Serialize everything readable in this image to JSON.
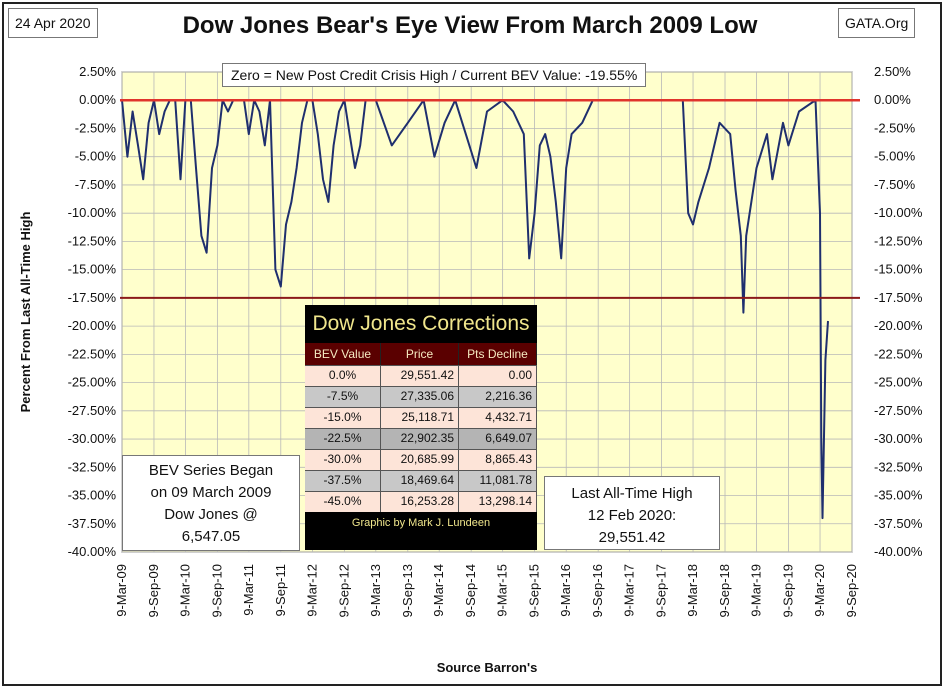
{
  "date": "24 Apr 2020",
  "source_site": "GATA.Org",
  "title": "Dow Jones Bear's Eye View From March 2009 Low",
  "subtitle": "Zero = New Post Credit Crisis High / Current BEV Value:  -19.55%",
  "colors": {
    "plot_bg": "#ffffcc",
    "line": "#1f2f6e",
    "zero_line": "#e0342c",
    "level_line": "#8b1a1a"
  },
  "corrections_table": {
    "title": "Dow Jones Corrections",
    "headers": [
      "BEV Value",
      "Price",
      "Pts Decline"
    ],
    "rows": [
      [
        "0.0%",
        "29,551.42",
        "0.00"
      ],
      [
        "-7.5%",
        "27,335.06",
        "2,216.36"
      ],
      [
        "-15.0%",
        "25,118.71",
        "4,432.71"
      ],
      [
        "-22.5%",
        "22,902.35",
        "6,649.07"
      ],
      [
        "-30.0%",
        "20,685.99",
        "8,865.43"
      ],
      [
        "-37.5%",
        "18,469.64",
        "11,081.78"
      ],
      [
        "-45.0%",
        "16,253.28",
        "13,298.14"
      ]
    ],
    "row_colors": [
      "#fde4d8",
      "#c8c8c8",
      "#fde4d8",
      "#b4b4b4",
      "#fde4d8",
      "#c8c8c8",
      "#fde4d8"
    ],
    "footer": "Graphic by Mark J. Lundeen"
  },
  "note_left": [
    "BEV Series Began",
    "on 09 March 2009",
    "Dow Jones @",
    "6,547.05"
  ],
  "note_right": [
    "Last All-Time High",
    "12 Feb 2020:",
    "29,551.42"
  ],
  "chart_data": {
    "type": "line",
    "title": "Dow Jones Bear's Eye View From March 2009 Low",
    "xlabel": "Source Barron's",
    "ylabel": "Percent From Last All-Time High",
    "ylim": [
      -40,
      2.5
    ],
    "y_ticks": [
      "2.50%",
      "0.00%",
      "-2.50%",
      "-5.00%",
      "-7.50%",
      "-10.00%",
      "-12.50%",
      "-15.00%",
      "-17.50%",
      "-20.00%",
      "-22.50%",
      "-25.00%",
      "-27.50%",
      "-30.00%",
      "-32.50%",
      "-35.00%",
      "-37.50%",
      "-40.00%"
    ],
    "x_ticks": [
      "9-Mar-09",
      "9-Sep-09",
      "9-Mar-10",
      "9-Sep-10",
      "9-Mar-11",
      "9-Sep-11",
      "9-Mar-12",
      "9-Sep-12",
      "9-Mar-13",
      "9-Sep-13",
      "9-Mar-14",
      "9-Sep-14",
      "9-Mar-15",
      "9-Sep-15",
      "9-Mar-16",
      "9-Sep-16",
      "9-Mar-17",
      "9-Sep-17",
      "9-Mar-18",
      "9-Sep-18",
      "9-Mar-19",
      "9-Sep-19",
      "9-Mar-20",
      "9-Sep-20"
    ],
    "reference_lines": [
      0,
      -17.5
    ],
    "grid": true,
    "series": [
      {
        "x": [
          "9-Mar-09",
          "9-Apr-09",
          "9-May-09",
          "9-Jun-09",
          "9-Jul-09",
          "9-Aug-09",
          "9-Sep-09",
          "9-Oct-09",
          "9-Nov-09",
          "9-Dec-09",
          "9-Jan-10",
          "9-Feb-10",
          "9-Mar-10",
          "9-Apr-10",
          "9-May-10",
          "9-Jun-10",
          "9-Jul-10",
          "9-Aug-10",
          "9-Sep-10",
          "9-Oct-10",
          "9-Nov-10",
          "9-Dec-10",
          "9-Jan-11",
          "9-Feb-11",
          "9-Mar-11",
          "9-Apr-11",
          "9-May-11",
          "9-Jun-11",
          "9-Jul-11",
          "9-Aug-11",
          "9-Sep-11",
          "9-Oct-11",
          "9-Nov-11",
          "9-Dec-11",
          "9-Jan-12",
          "9-Feb-12",
          "9-Mar-12",
          "9-Apr-12",
          "9-May-12",
          "9-Jun-12",
          "9-Jul-12",
          "9-Aug-12",
          "9-Sep-12",
          "9-Oct-12",
          "9-Nov-12",
          "9-Dec-12",
          "9-Jan-13",
          "9-Feb-13",
          "9-Mar-13",
          "9-Jun-13",
          "9-Sep-13",
          "9-Dec-13",
          "9-Feb-14",
          "9-Apr-14",
          "9-Jun-14",
          "9-Aug-14",
          "9-Oct-14",
          "9-Dec-14",
          "9-Mar-15",
          "9-May-15",
          "9-Jul-15",
          "9-Aug-15",
          "9-Sep-15",
          "9-Oct-15",
          "9-Nov-15",
          "9-Dec-15",
          "9-Jan-16",
          "9-Feb-16",
          "9-Mar-16",
          "9-Apr-16",
          "9-Jun-16",
          "9-Aug-16",
          "9-Nov-16",
          "9-Mar-17",
          "9-Sep-17",
          "9-Jan-18",
          "9-Feb-18",
          "9-Mar-18",
          "9-Apr-18",
          "9-Jun-18",
          "9-Aug-18",
          "9-Oct-18",
          "9-Nov-18",
          "9-Dec-18",
          "24-Dec-18",
          "9-Jan-19",
          "9-Mar-19",
          "9-May-19",
          "9-Jun-19",
          "9-Aug-19",
          "9-Sep-19",
          "9-Nov-19",
          "12-Feb-20",
          "9-Mar-20",
          "16-Mar-20",
          "23-Mar-20",
          "9-Apr-20",
          "24-Apr-20"
        ],
        "y": [
          0,
          -5,
          -1,
          -4,
          -7,
          -2,
          0,
          -3,
          -1,
          0,
          0,
          -7,
          0,
          0,
          -6,
          -12,
          -13.5,
          -6,
          -4,
          0,
          -1,
          0,
          0,
          0,
          -3,
          0,
          -1,
          -4,
          0,
          -15,
          -16.5,
          -11,
          -9,
          -6,
          -2,
          0,
          0,
          -3,
          -7,
          -9,
          -4,
          -1,
          0,
          -3,
          -6,
          -4,
          0,
          0,
          0,
          -4,
          -2,
          0,
          -5,
          -2,
          0,
          -3,
          -6,
          -1,
          0,
          -1,
          -3,
          -14,
          -10,
          -4,
          -3,
          -5,
          -9,
          -14,
          -6,
          -3,
          -2,
          0,
          0,
          0,
          0,
          0,
          -10,
          -11,
          -9,
          -6,
          -2,
          -3,
          -8,
          -12,
          -18.8,
          -12,
          -6,
          -3,
          -7,
          -2,
          -4,
          -1,
          0,
          -10,
          -30,
          -37,
          -23,
          -19.55
        ]
      }
    ],
    "current_value": "-19.55%"
  }
}
